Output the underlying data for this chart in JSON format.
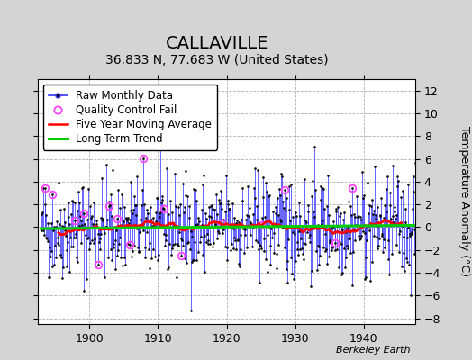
{
  "title": "CALLAVILLE",
  "subtitle": "36.833 N, 77.683 W (United States)",
  "ylabel": "Temperature Anomaly (°C)",
  "start_year": 1893,
  "end_year": 1948,
  "ylim": [
    -8.5,
    13.0
  ],
  "yticks": [
    -8,
    -6,
    -4,
    -2,
    0,
    2,
    4,
    6,
    8,
    10,
    12
  ],
  "xticks": [
    1900,
    1910,
    1920,
    1930,
    1940
  ],
  "outer_bg": "#d4d4d4",
  "plot_bg": "#ffffff",
  "grid_color": "#b0b0b0",
  "raw_line_color": "#3333ff",
  "raw_dot_color": "#000000",
  "ma_color": "#ff0000",
  "trend_color": "#00cc00",
  "qc_color": "#ff44ff",
  "legend_labels": [
    "Raw Monthly Data",
    "Quality Control Fail",
    "Five Year Moving Average",
    "Long-Term Trend"
  ],
  "berkeley_earth_label": "Berkeley Earth",
  "title_fontsize": 14,
  "subtitle_fontsize": 10,
  "axis_label_fontsize": 9,
  "tick_fontsize": 9,
  "legend_fontsize": 8.5,
  "seed": 42,
  "amplitude": 2.5,
  "qc_indices": [
    6,
    20,
    58,
    75,
    100,
    119,
    133,
    155,
    179,
    215,
    244,
    315,
    385,
    425,
    514,
    543
  ]
}
